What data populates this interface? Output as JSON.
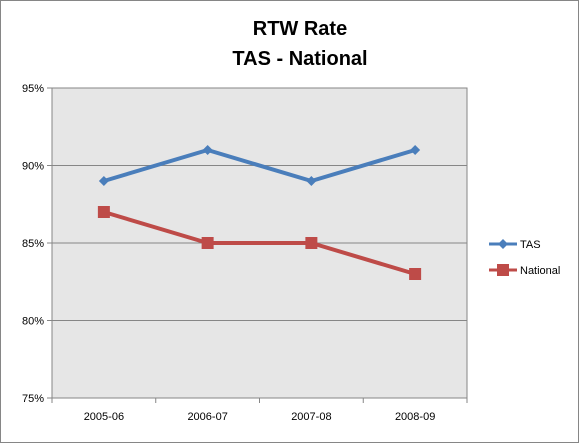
{
  "chart_data": {
    "type": "line",
    "title": "RTW Rate",
    "subtitle": "TAS - National",
    "xlabel": "",
    "ylabel": "",
    "categories": [
      "2005-06",
      "2006-07",
      "2007-08",
      "2008-09"
    ],
    "ylim": [
      75,
      95
    ],
    "yticks": [
      75,
      80,
      85,
      90,
      95
    ],
    "ytick_labels": [
      "75%",
      "80%",
      "85%",
      "90%",
      "95%"
    ],
    "grid": "horizontal",
    "legend": "right",
    "plot_background": "#e6e6e6",
    "series": [
      {
        "name": "TAS",
        "values": [
          89,
          91,
          89,
          91
        ],
        "color": "#4a7ebb",
        "marker": "diamond"
      },
      {
        "name": "National",
        "values": [
          87,
          85,
          85,
          83
        ],
        "color": "#be4b48",
        "marker": "square"
      }
    ]
  }
}
